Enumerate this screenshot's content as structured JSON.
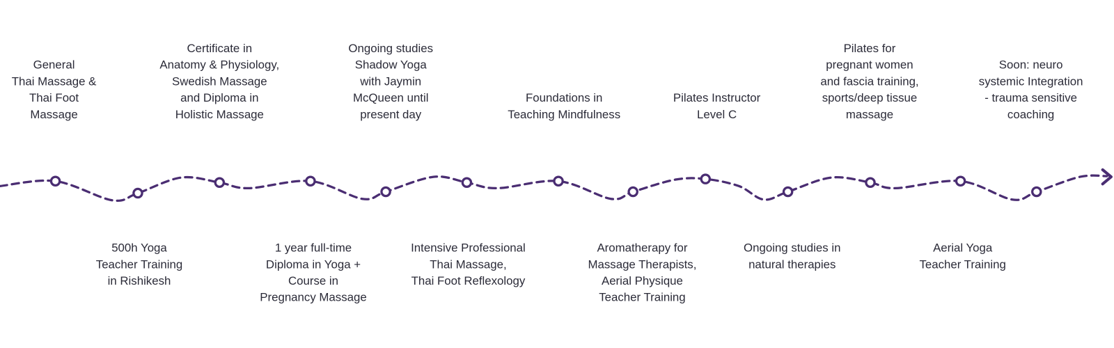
{
  "milestones": [
    {
      "lines": [
        "General",
        "Thai Massage &",
        "Thai Foot",
        "Massage"
      ]
    },
    {
      "lines": [
        "500h Yoga",
        "Teacher Training",
        "in Rishikesh"
      ]
    },
    {
      "lines": [
        "Certificate in",
        "Anatomy & Physiology,",
        "Swedish Massage",
        "and Diploma in",
        "Holistic Massage"
      ]
    },
    {
      "lines": [
        "1 year full-time",
        "Diploma in Yoga +",
        "Course in",
        "Pregnancy Massage"
      ]
    },
    {
      "lines": [
        "Ongoing studies",
        "Shadow Yoga",
        "with Jaymin",
        "McQueen until",
        "present day"
      ]
    },
    {
      "lines": [
        "Intensive Professional",
        "Thai Massage,",
        "Thai Foot Reflexology"
      ]
    },
    {
      "lines": [
        "Foundations in",
        "Teaching Mindfulness"
      ]
    },
    {
      "lines": [
        "Aromatherapy for",
        "Massage Therapists,",
        "Aerial Physique",
        "Teacher Training"
      ]
    },
    {
      "lines": [
        "Pilates Instructor",
        "Level C"
      ]
    },
    {
      "lines": [
        "Ongoing studies in",
        "natural therapies"
      ]
    },
    {
      "lines": [
        "Pilates for",
        "pregnant women",
        "and fascia training,",
        "sports/deep tissue",
        "massage"
      ]
    },
    {
      "lines": [
        "Aerial Yoga",
        "Teacher Training"
      ]
    },
    {
      "lines": [
        "Soon: neuro",
        "systemic Integration",
        "- trauma sensitive",
        "coaching"
      ]
    }
  ]
}
